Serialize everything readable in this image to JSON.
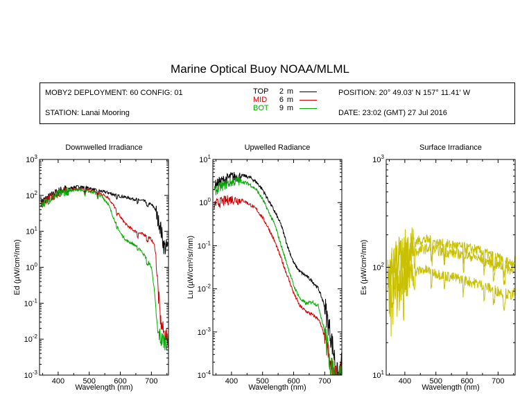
{
  "title": "Marine Optical Buoy NOAA/MLML",
  "info": {
    "deployment": "MOBY2 DEPLOYMENT: 60 CONFIG: 01",
    "station": "STATION: Lanai Mooring",
    "position": "POSITION: 20° 49.03' N   157° 11.41' W",
    "date": "DATE: 23:02 (GMT) 27 Jul 2016",
    "legend": [
      {
        "name": "TOP",
        "depth": "2",
        "unit": "m",
        "color": "#000000"
      },
      {
        "name": "MID",
        "depth": "6",
        "unit": "m",
        "color": "#cc0000"
      },
      {
        "name": "BOT",
        "depth": "9",
        "unit": "m",
        "color": "#00aa00"
      }
    ]
  },
  "chart_data": [
    {
      "type": "line",
      "title": "Downwelled Irradiance",
      "xlabel": "Wavelength (nm)",
      "ylabel": "Ed  (µW/cm²/nm)",
      "xlim": [
        340,
        755
      ],
      "ylim": [
        0.001,
        1000
      ],
      "yscale": "log",
      "xticks": [
        400,
        500,
        600,
        700
      ],
      "ytick_labels": [
        {
          "v": 1000,
          "b": "10",
          "e": "3"
        },
        {
          "v": 100,
          "b": "10",
          "e": "2"
        },
        {
          "v": 10,
          "b": "10",
          "e": "1"
        },
        {
          "v": 1,
          "b": "10",
          "e": "0"
        },
        {
          "v": 0.1,
          "b": "10",
          "e": "-1"
        },
        {
          "v": 0.01,
          "b": "10",
          "e": "-2"
        },
        {
          "v": 0.001,
          "b": "10",
          "e": "-3"
        }
      ],
      "series": [
        {
          "name": "TOP",
          "color": "#000000",
          "x": [
            345,
            360,
            380,
            400,
            420,
            440,
            460,
            480,
            500,
            520,
            540,
            560,
            580,
            600,
            620,
            640,
            660,
            680,
            700,
            710,
            720,
            730,
            740,
            745,
            755
          ],
          "y": [
            65,
            80,
            100,
            130,
            150,
            160,
            175,
            170,
            160,
            140,
            130,
            120,
            105,
            95,
            88,
            80,
            75,
            68,
            55,
            45,
            30,
            12,
            4,
            3.5,
            3.5
          ]
        },
        {
          "name": "MID",
          "color": "#cc0000",
          "x": [
            345,
            360,
            380,
            400,
            420,
            440,
            460,
            480,
            500,
            520,
            540,
            560,
            580,
            600,
            620,
            640,
            660,
            680,
            700,
            710,
            715,
            720,
            725,
            730,
            740,
            745,
            755
          ],
          "y": [
            60,
            72,
            90,
            115,
            130,
            145,
            150,
            148,
            140,
            125,
            110,
            90,
            50,
            25,
            15,
            11,
            9,
            8,
            6,
            4,
            2,
            0.5,
            0.1,
            0.03,
            0.015,
            0.012,
            0.01
          ]
        },
        {
          "name": "BOT",
          "color": "#00aa00",
          "x": [
            345,
            360,
            380,
            400,
            420,
            440,
            460,
            480,
            500,
            520,
            540,
            560,
            580,
            600,
            620,
            640,
            660,
            680,
            700,
            705,
            710,
            715,
            720,
            730,
            740,
            755
          ],
          "y": [
            55,
            65,
            85,
            110,
            125,
            140,
            145,
            140,
            132,
            115,
            95,
            60,
            22,
            9,
            5.5,
            4.5,
            3.5,
            2,
            1,
            0.5,
            0.2,
            0.06,
            0.02,
            0.01,
            0.009,
            0.008
          ]
        }
      ]
    },
    {
      "type": "line",
      "title": "Upwelled Radiance",
      "xlabel": "Wavelength (nm)",
      "ylabel": "Lu  (µW/cm²/sr/nm)",
      "xlim": [
        340,
        755
      ],
      "ylim": [
        0.0001,
        10
      ],
      "yscale": "log",
      "xticks": [
        400,
        500,
        600,
        700
      ],
      "ytick_labels": [
        {
          "v": 10,
          "b": "10",
          "e": "1"
        },
        {
          "v": 1,
          "b": "10",
          "e": "0"
        },
        {
          "v": 0.1,
          "b": "10",
          "e": "-1"
        },
        {
          "v": 0.01,
          "b": "10",
          "e": "-2"
        },
        {
          "v": 0.001,
          "b": "10",
          "e": "-3"
        },
        {
          "v": 0.0001,
          "b": "10",
          "e": "-4"
        }
      ],
      "series": [
        {
          "name": "TOP",
          "color": "#000000",
          "x": [
            345,
            360,
            380,
            400,
            420,
            440,
            460,
            480,
            500,
            520,
            540,
            560,
            580,
            600,
            620,
            640,
            660,
            680,
            700,
            720,
            730,
            740,
            750,
            755
          ],
          "y": [
            2.5,
            3,
            3.5,
            4,
            4,
            4.2,
            3.8,
            3,
            2,
            1.1,
            0.6,
            0.3,
            0.1,
            0.04,
            0.025,
            0.02,
            0.015,
            0.01,
            0.004,
            0.0008,
            0.0003,
            0.0001,
            0.0001,
            0.0002
          ]
        },
        {
          "name": "MID",
          "color": "#cc0000",
          "x": [
            345,
            360,
            380,
            400,
            420,
            440,
            460,
            480,
            500,
            520,
            540,
            560,
            580,
            600,
            620,
            640,
            660,
            680,
            700,
            720,
            730,
            740,
            755
          ],
          "y": [
            0.9,
            1,
            1.1,
            1.2,
            1.15,
            1.1,
            0.9,
            0.7,
            0.45,
            0.25,
            0.12,
            0.05,
            0.02,
            0.008,
            0.004,
            0.003,
            0.0025,
            0.002,
            0.0008,
            0.00015,
            0.0001,
            0.0001,
            0.0001
          ]
        },
        {
          "name": "BOT",
          "color": "#00aa00",
          "x": [
            345,
            360,
            380,
            400,
            420,
            440,
            460,
            480,
            500,
            520,
            540,
            560,
            580,
            600,
            620,
            640,
            660,
            680,
            700,
            720,
            730,
            740,
            755
          ],
          "y": [
            1.8,
            2.2,
            2.6,
            3,
            3.2,
            3,
            2.6,
            2,
            1.2,
            0.6,
            0.3,
            0.1,
            0.035,
            0.012,
            0.006,
            0.0045,
            0.005,
            0.004,
            0.001,
            0.00015,
            0.0001,
            0.0001,
            0.0001
          ]
        }
      ]
    },
    {
      "type": "line",
      "title": "Surface Irradiance",
      "xlabel": "Wavelength (nm)",
      "ylabel": "Es  (µW/cm²/nm)",
      "xlim": [
        340,
        755
      ],
      "ylim": [
        10,
        1000
      ],
      "yscale": "log",
      "xticks": [
        400,
        500,
        600,
        700
      ],
      "ytick_labels": [
        {
          "v": 1000,
          "b": "10",
          "e": "3"
        },
        {
          "v": 100,
          "b": "10",
          "e": "2"
        },
        {
          "v": 10,
          "b": "10",
          "e": "1"
        }
      ],
      "series": [
        {
          "name": "",
          "color": "#c8c000",
          "x": [
            345,
            360,
            380,
            400,
            420,
            440,
            460,
            480,
            500,
            520,
            540,
            560,
            580,
            600,
            620,
            640,
            660,
            680,
            700,
            720,
            740,
            755
          ],
          "y": [
            95,
            110,
            130,
            150,
            165,
            175,
            180,
            178,
            170,
            165,
            162,
            160,
            155,
            150,
            148,
            142,
            135,
            128,
            122,
            115,
            110,
            115
          ]
        },
        {
          "name": "",
          "color": "#c8c000",
          "x": [
            345,
            360,
            380,
            400,
            420,
            440,
            460,
            480,
            500,
            520,
            540,
            560,
            580,
            600,
            620,
            640,
            660,
            680,
            700,
            720,
            740,
            755
          ],
          "y": [
            85,
            98,
            110,
            125,
            135,
            140,
            148,
            150,
            145,
            140,
            138,
            135,
            132,
            128,
            125,
            120,
            115,
            110,
            105,
            100,
            95,
            100
          ]
        },
        {
          "name": "",
          "color": "#c8c000",
          "x": [
            345,
            360,
            380,
            400,
            420,
            440,
            460,
            480,
            500,
            520,
            540,
            560,
            580,
            600,
            620,
            640,
            660,
            680,
            700,
            720,
            740,
            755
          ],
          "y": [
            55,
            62,
            70,
            80,
            88,
            92,
            95,
            92,
            88,
            85,
            82,
            80,
            78,
            75,
            72,
            70,
            66,
            63,
            60,
            58,
            55,
            58
          ]
        }
      ]
    }
  ]
}
